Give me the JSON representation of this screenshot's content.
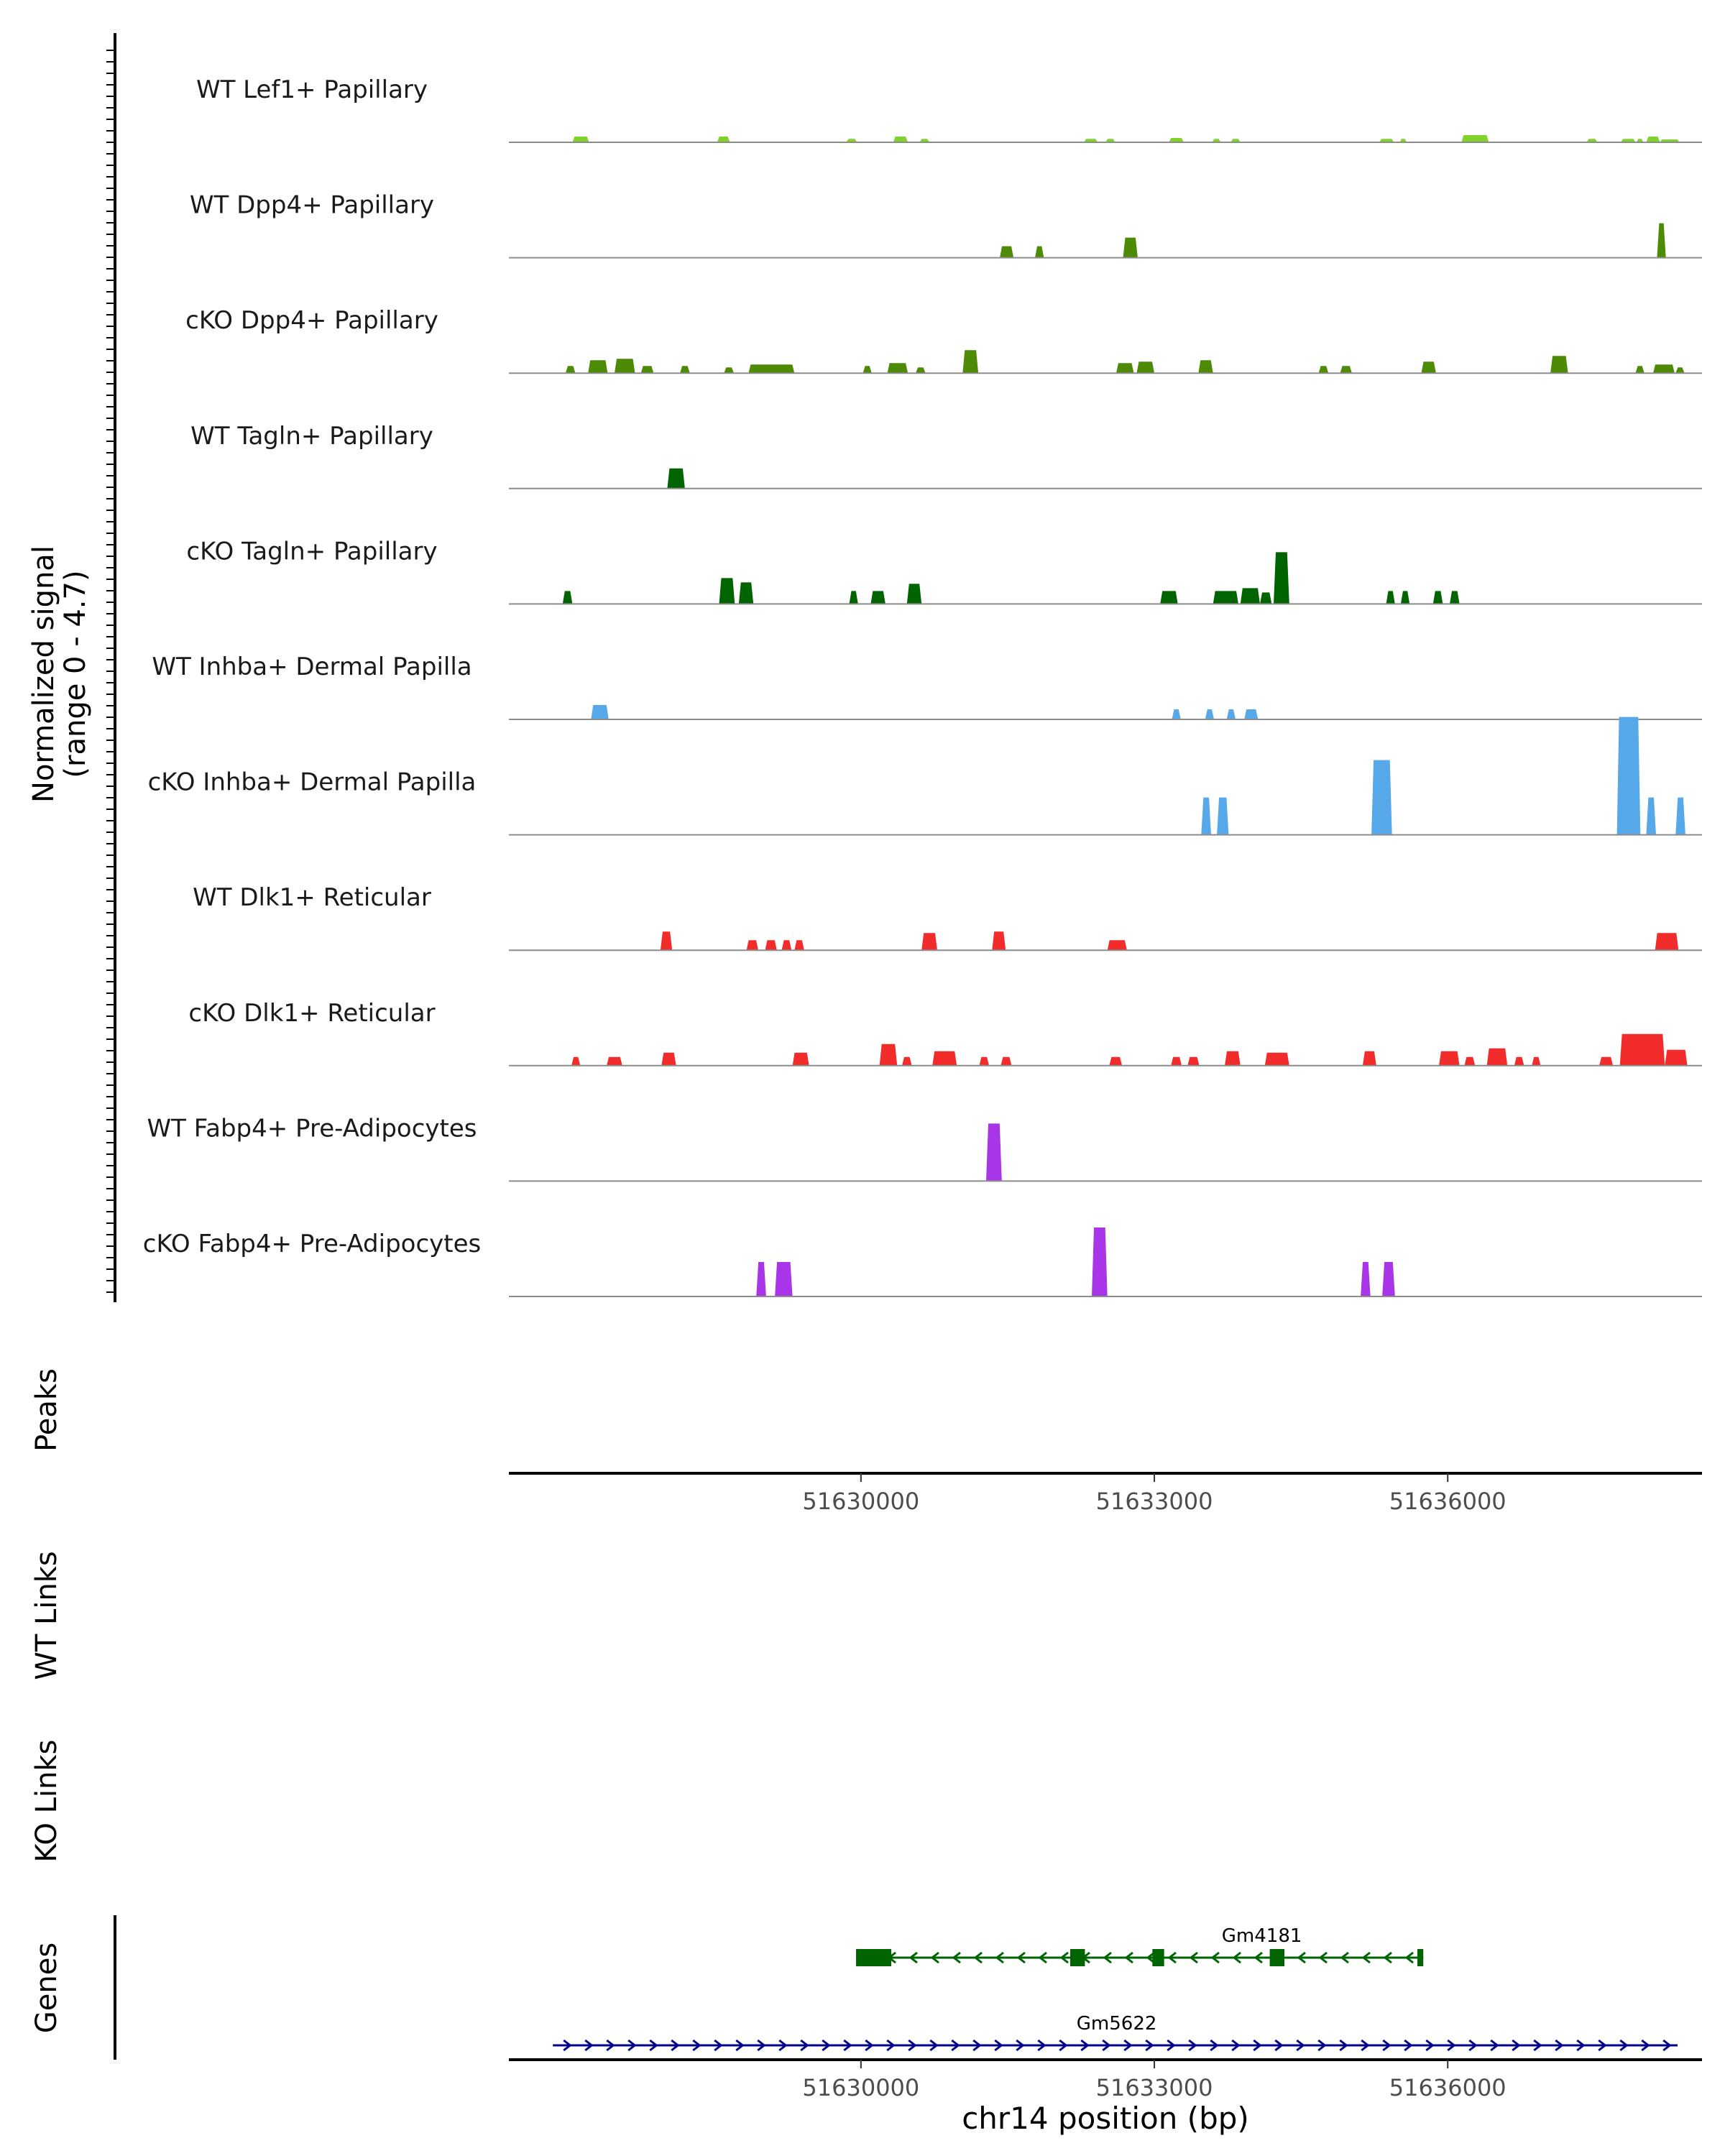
{
  "chart_data": {
    "type": "area",
    "title": "",
    "ylabel": "Normalized signal\n(range 0 - 4.7)",
    "xlabel": "chr14 position (bp)",
    "ylim": [
      0,
      4.7
    ],
    "xlim": [
      51626400,
      51638600
    ],
    "x_ticks": [
      51630000,
      51633000,
      51636000
    ],
    "x_tick_labels": [
      "51630000",
      "51633000",
      "51636000"
    ],
    "section_labels": {
      "peaks": "Peaks",
      "wt_links": "WT Links",
      "ko_links": "KO Links",
      "genes": "Genes"
    },
    "tracks": [
      {
        "name": "WT Lef1+ Papillary",
        "color": "#7fd32a",
        "peaks": [
          [
            51627050,
            51627220,
            0.2
          ],
          [
            51628530,
            51628660,
            0.2
          ],
          [
            51629850,
            51629960,
            0.12
          ],
          [
            51630330,
            51630480,
            0.2
          ],
          [
            51630600,
            51630700,
            0.12
          ],
          [
            51632280,
            51632420,
            0.12
          ],
          [
            51632500,
            51632600,
            0.12
          ],
          [
            51633150,
            51633300,
            0.15
          ],
          [
            51633590,
            51633680,
            0.12
          ],
          [
            51633780,
            51633880,
            0.12
          ],
          [
            51635300,
            51635450,
            0.12
          ],
          [
            51635510,
            51635580,
            0.12
          ],
          [
            51636140,
            51636420,
            0.25
          ],
          [
            51637420,
            51637530,
            0.12
          ],
          [
            51637770,
            51637920,
            0.12
          ],
          [
            51637930,
            51638000,
            0.12
          ],
          [
            51638030,
            51638170,
            0.2
          ],
          [
            51638170,
            51638370,
            0.1
          ]
        ]
      },
      {
        "name": "WT Dpp4+ Papillary",
        "color": "#4d8a05",
        "peaks": [
          [
            51631420,
            51631560,
            0.4
          ],
          [
            51631780,
            51631870,
            0.4
          ],
          [
            51632680,
            51632830,
            0.7
          ],
          [
            51638140,
            51638230,
            1.2
          ]
        ]
      },
      {
        "name": "cKO Dpp4+ Papillary",
        "color": "#4d8a05",
        "peaks": [
          [
            51626980,
            51627080,
            0.25
          ],
          [
            51627210,
            51627410,
            0.45
          ],
          [
            51627480,
            51627690,
            0.5
          ],
          [
            51627750,
            51627880,
            0.25
          ],
          [
            51628150,
            51628250,
            0.25
          ],
          [
            51628600,
            51628700,
            0.2
          ],
          [
            51628850,
            51629320,
            0.3
          ],
          [
            51630020,
            51630110,
            0.25
          ],
          [
            51630270,
            51630480,
            0.35
          ],
          [
            51630560,
            51630660,
            0.2
          ],
          [
            51631040,
            51631200,
            0.8
          ],
          [
            51632610,
            51632790,
            0.35
          ],
          [
            51632820,
            51633000,
            0.4
          ],
          [
            51633450,
            51633600,
            0.45
          ],
          [
            51634680,
            51634780,
            0.25
          ],
          [
            51634900,
            51635020,
            0.25
          ],
          [
            51635730,
            51635880,
            0.4
          ],
          [
            51637050,
            51637230,
            0.6
          ],
          [
            51637920,
            51638010,
            0.25
          ],
          [
            51638100,
            51638320,
            0.3
          ],
          [
            51638330,
            51638420,
            0.2
          ]
        ]
      },
      {
        "name": "WT Tagln+ Papillary",
        "color": "#006400",
        "peaks": [
          [
            51628020,
            51628200,
            0.7
          ]
        ]
      },
      {
        "name": "cKO Tagln+ Papillary",
        "color": "#006400",
        "peaks": [
          [
            51626950,
            51627050,
            0.45
          ],
          [
            51628550,
            51628710,
            0.9
          ],
          [
            51628750,
            51628900,
            0.75
          ],
          [
            51629880,
            51629970,
            0.45
          ],
          [
            51630100,
            51630250,
            0.45
          ],
          [
            51630470,
            51630620,
            0.7
          ],
          [
            51633060,
            51633240,
            0.45
          ],
          [
            51633600,
            51633860,
            0.45
          ],
          [
            51633880,
            51634080,
            0.55
          ],
          [
            51634080,
            51634200,
            0.4
          ],
          [
            51634220,
            51634380,
            1.8
          ],
          [
            51635370,
            51635460,
            0.45
          ],
          [
            51635520,
            51635610,
            0.45
          ],
          [
            51635850,
            51635950,
            0.45
          ],
          [
            51636020,
            51636120,
            0.45
          ]
        ]
      },
      {
        "name": "WT Inhba+ Dermal Papilla",
        "color": "#56a8e8",
        "peaks": [
          [
            51627240,
            51627420,
            0.5
          ],
          [
            51633180,
            51633270,
            0.35
          ],
          [
            51633520,
            51633610,
            0.35
          ],
          [
            51633740,
            51633830,
            0.35
          ],
          [
            51633920,
            51634060,
            0.35
          ]
        ]
      },
      {
        "name": "cKO Inhba+ Dermal Papilla",
        "color": "#56a8e8",
        "peaks": [
          [
            51633480,
            51633580,
            1.3
          ],
          [
            51633640,
            51633760,
            1.3
          ],
          [
            51635220,
            51635430,
            2.6
          ],
          [
            51637730,
            51637970,
            4.1
          ],
          [
            51638030,
            51638130,
            1.3
          ],
          [
            51638330,
            51638430,
            1.3
          ]
        ]
      },
      {
        "name": "WT Dlk1+ Reticular",
        "color": "#f22b2b",
        "peaks": [
          [
            51627950,
            51628070,
            0.65
          ],
          [
            51628830,
            51628950,
            0.35
          ],
          [
            51629020,
            51629140,
            0.35
          ],
          [
            51629190,
            51629290,
            0.35
          ],
          [
            51629320,
            51629420,
            0.35
          ],
          [
            51630620,
            51630780,
            0.6
          ],
          [
            51631340,
            51631480,
            0.65
          ],
          [
            51632520,
            51632720,
            0.35
          ],
          [
            51638120,
            51638360,
            0.6
          ]
        ]
      },
      {
        "name": "cKO Dlk1+ Reticular",
        "color": "#f22b2b",
        "peaks": [
          [
            51627040,
            51627130,
            0.3
          ],
          [
            51627400,
            51627560,
            0.3
          ],
          [
            51627960,
            51628110,
            0.45
          ],
          [
            51629300,
            51629470,
            0.45
          ],
          [
            51630190,
            51630370,
            0.75
          ],
          [
            51630420,
            51630520,
            0.3
          ],
          [
            51630730,
            51630980,
            0.5
          ],
          [
            51631210,
            51631310,
            0.3
          ],
          [
            51631430,
            51631540,
            0.3
          ],
          [
            51632540,
            51632670,
            0.3
          ],
          [
            51633170,
            51633280,
            0.3
          ],
          [
            51633340,
            51633460,
            0.3
          ],
          [
            51633720,
            51633880,
            0.5
          ],
          [
            51634130,
            51634380,
            0.45
          ],
          [
            51635130,
            51635270,
            0.5
          ],
          [
            51635910,
            51636120,
            0.5
          ],
          [
            51636170,
            51636280,
            0.3
          ],
          [
            51636400,
            51636610,
            0.6
          ],
          [
            51636680,
            51636780,
            0.3
          ],
          [
            51636860,
            51636950,
            0.3
          ],
          [
            51637550,
            51637690,
            0.3
          ],
          [
            51637760,
            51638220,
            1.1
          ],
          [
            51638220,
            51638450,
            0.55
          ]
        ]
      },
      {
        "name": "WT Fabp4+ Pre-Adipocytes",
        "color": "#a836e8",
        "peaks": [
          [
            51631280,
            51631440,
            2.0
          ]
        ]
      },
      {
        "name": "cKO Fabp4+ Pre-Adipocytes",
        "color": "#a836e8",
        "peaks": [
          [
            51628930,
            51629030,
            1.2
          ],
          [
            51629120,
            51629300,
            1.2
          ],
          [
            51632360,
            51632520,
            2.4
          ],
          [
            51635110,
            51635210,
            1.2
          ],
          [
            51635330,
            51635460,
            1.2
          ]
        ]
      }
    ],
    "genes": [
      {
        "name": "Gm4181",
        "strand": "-",
        "start": 51629950,
        "end": 51635750,
        "color": "#006400",
        "exons": [
          [
            51629950,
            51630310
          ],
          [
            51632140,
            51632290
          ],
          [
            51632980,
            51633100
          ],
          [
            51634180,
            51634330
          ],
          [
            51635690,
            51635750
          ]
        ]
      },
      {
        "name": "Gm5622",
        "strand": "+",
        "start": 51626850,
        "end": 51638350,
        "color": "#00008b",
        "exons": []
      }
    ]
  }
}
